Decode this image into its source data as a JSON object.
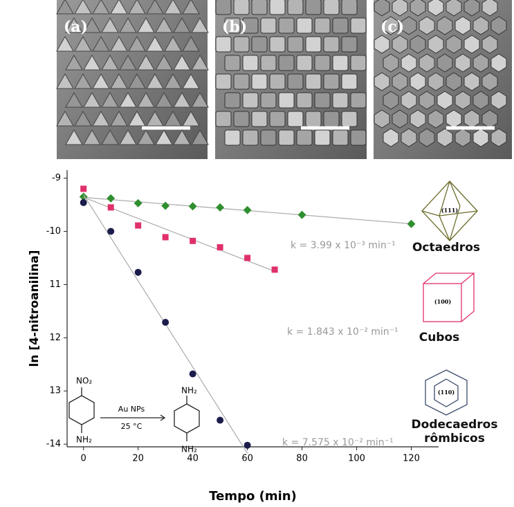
{
  "panels": [
    "(a)",
    "(b)",
    "(c)"
  ],
  "scheme": {
    "reactant_top": "NO₂",
    "reactant_bottom": "NH₂",
    "catalyst": "Au NPs",
    "temperature": "25 °C",
    "product_top": "NH₂",
    "product_bottom": "NH₂"
  },
  "chart_data": {
    "type": "scatter",
    "x_label": "Tempo (min)",
    "y_label": "ln [4-nitroanilina]",
    "xlim": [
      -6,
      130
    ],
    "ylim": [
      -14.05,
      -8.85
    ],
    "xticks": [
      0,
      20,
      40,
      60,
      80,
      100,
      120
    ],
    "yticks": [
      -9,
      -10,
      {
        "value": -11,
        "label": "11"
      },
      {
        "value": -12,
        "label": "12"
      },
      {
        "value": -13,
        "label": "13"
      },
      -14
    ],
    "series": [
      {
        "name": "Octaedros",
        "color": "#2f8f2f",
        "marker": "diamond",
        "facet": "(111)",
        "fit_label": "k = 3.99 x 10⁻³ min⁻¹",
        "x": [
          0,
          10,
          20,
          30,
          40,
          50,
          60,
          80,
          120
        ],
        "values": [
          -9.35,
          -9.38,
          -9.47,
          -9.52,
          -9.53,
          -9.55,
          -9.6,
          -9.69,
          -9.86
        ]
      },
      {
        "name": "Cubos",
        "color": "#e0306a",
        "marker": "square",
        "facet": "(100)",
        "fit_label": "k = 1.843 x 10⁻² min⁻¹",
        "x": [
          0,
          10,
          20,
          30,
          40,
          50,
          60,
          70
        ],
        "values": [
          -9.2,
          -9.55,
          -9.89,
          -10.11,
          -10.18,
          -10.3,
          -10.5,
          -10.72
        ]
      },
      {
        "name": "Dodecaedros rômbicos",
        "color": "#1c1c4c",
        "marker": "circle",
        "facet": "(110)",
        "fit_label": "k = 7.575 x 10⁻² min⁻¹",
        "x": [
          0,
          10,
          20,
          30,
          40,
          50,
          60
        ],
        "values": [
          -9.46,
          -10.0,
          -10.77,
          -11.71,
          -12.68,
          -13.55,
          -14.02
        ]
      }
    ]
  }
}
